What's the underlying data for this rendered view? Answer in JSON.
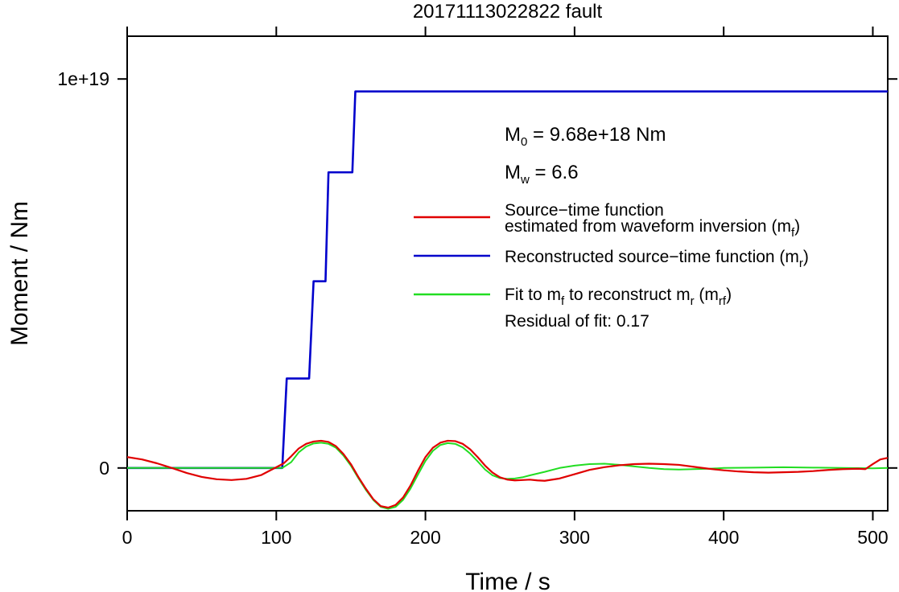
{
  "chart_data": {
    "type": "line",
    "title": "20171113022822 fault",
    "xlabel": "Time / s",
    "ylabel": "Moment / Nm",
    "xlim": [
      0,
      510
    ],
    "ylim": [
      -1.1e+18,
      1.11e+19
    ],
    "x_ticks": [
      0,
      100,
      200,
      300,
      400,
      500
    ],
    "x_tick_labels": [
      "0",
      "100",
      "200",
      "300",
      "400",
      "500"
    ],
    "y_ticks": [
      0,
      1e+19
    ],
    "y_tick_labels": [
      "0",
      "1e+19"
    ],
    "grid": false,
    "legend_position": "right",
    "annotations": {
      "m0_prefix": "M",
      "m0_sub": "0",
      "m0_value": " = 9.68e+18 Nm",
      "mw_prefix": "M",
      "mw_sub": "w",
      "mw_value": " = 6.6",
      "residual": "Residual of fit: 0.17"
    },
    "series": [
      {
        "name_line1": "Source−time function",
        "name_line2": "estimated from waveform inversion (m",
        "name_sub": "f",
        "name_end": ")",
        "color": "#e00000",
        "width": 2.2,
        "x": [
          0,
          10,
          20,
          30,
          40,
          50,
          60,
          70,
          80,
          90,
          100,
          105,
          110,
          115,
          120,
          125,
          130,
          135,
          140,
          145,
          150,
          155,
          160,
          165,
          170,
          175,
          180,
          185,
          190,
          195,
          200,
          205,
          210,
          215,
          220,
          225,
          230,
          235,
          240,
          245,
          250,
          255,
          260,
          265,
          270,
          275,
          280,
          290,
          300,
          310,
          320,
          330,
          340,
          350,
          360,
          370,
          380,
          390,
          400,
          410,
          420,
          430,
          440,
          450,
          460,
          470,
          480,
          490,
          495,
          500,
          505,
          510
        ],
        "y": [
          2.8e+17,
          2.2e+17,
          1.2e+17,
          0,
          -1.3e+17,
          -2.3e+17,
          -2.9e+17,
          -3.1e+17,
          -2.8e+17,
          -1.8e+17,
          2e+16,
          1.2e+17,
          3e+17,
          5e+17,
          6.2e+17,
          6.8e+17,
          7e+17,
          6.7e+17,
          5.6e+17,
          3.6e+17,
          1e+17,
          -2.3e+17,
          -5.3e+17,
          -8e+17,
          -9.8e+17,
          -1.02e+18,
          -9.5e+17,
          -7.6e+17,
          -4.5e+17,
          -7e+16,
          2.8e+17,
          5.2e+17,
          6.5e+17,
          7e+17,
          6.9e+17,
          6.2e+17,
          4.8e+17,
          2.8e+17,
          6e+16,
          -1.2e+17,
          -2.4e+17,
          -3e+17,
          -3.2e+17,
          -3.1e+17,
          -3e+17,
          -3.2e+17,
          -3.3e+17,
          -2.7e+17,
          -1.6e+17,
          -5e+16,
          2e+16,
          7e+16,
          1e+17,
          1.1e+17,
          1e+17,
          8e+16,
          3e+16,
          -2e+16,
          -6e+16,
          -9e+16,
          -1.1e+17,
          -1.2e+17,
          -1.1e+17,
          -1e+17,
          -8e+16,
          -5e+16,
          -3e+16,
          -2e+16,
          -3e+16,
          1e+17,
          2.2e+17,
          2.6e+17
        ]
      },
      {
        "name_line1": "Reconstructed source−time function (m",
        "name_sub": "r",
        "name_end": ")",
        "color": "#0000cc",
        "width": 2.6,
        "step": true,
        "x": [
          0,
          104,
          107,
          122,
          125,
          133,
          135,
          151,
          153,
          510
        ],
        "y": [
          0,
          0,
          2.3e+18,
          2.3e+18,
          4.8e+18,
          4.8e+18,
          7.6e+18,
          7.6e+18,
          9.68e+18,
          9.68e+18
        ]
      },
      {
        "name_line1": "Fit to m",
        "name_sub1": "f",
        "name_mid": " to reconstruct m",
        "name_sub2": "r",
        "name_mid2": " (m",
        "name_sub3": "rf",
        "name_end": ")",
        "color": "#22dd22",
        "width": 2,
        "x": [
          0,
          104,
          110,
          115,
          120,
          125,
          130,
          135,
          140,
          145,
          150,
          155,
          160,
          165,
          170,
          175,
          180,
          185,
          190,
          195,
          200,
          205,
          210,
          215,
          220,
          225,
          230,
          235,
          240,
          245,
          250,
          255,
          260,
          265,
          270,
          280,
          290,
          300,
          310,
          320,
          330,
          340,
          350,
          360,
          370,
          380,
          390,
          400,
          420,
          440,
          460,
          480,
          500,
          510
        ],
        "y": [
          0,
          0,
          1.5e+17,
          4e+17,
          5.5e+17,
          6.3e+17,
          6.5e+17,
          6.2e+17,
          5.2e+17,
          3.2e+17,
          6e+16,
          -2.6e+17,
          -5.6e+17,
          -8.2e+17,
          -1e+18,
          -1.05e+18,
          -1e+18,
          -8.2e+17,
          -5.3e+17,
          -1.7e+17,
          1.8e+17,
          4.4e+17,
          5.9e+17,
          6.4e+17,
          6.2e+17,
          5.3e+17,
          3.7e+17,
          1.7e+17,
          -4e+16,
          -1.9e+17,
          -2.6e+17,
          -2.8e+17,
          -2.7e+17,
          -2.4e+17,
          -1.9e+17,
          -1e+17,
          0,
          6e+16,
          1e+17,
          1.1e+17,
          8e+16,
          4e+16,
          0,
          -3e+16,
          -4e+16,
          -3e+16,
          -2e+16,
          0,
          1e+16,
          2e+16,
          1e+16,
          0,
          -1e+16,
          0
        ]
      }
    ]
  }
}
